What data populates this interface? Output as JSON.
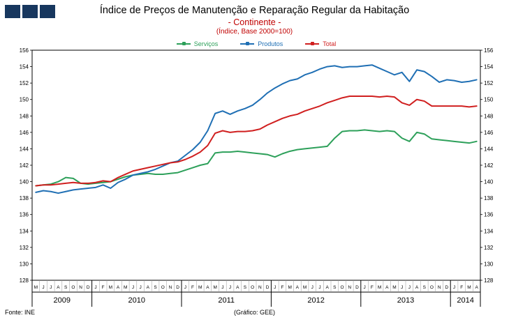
{
  "footer": {
    "source": "Fonte: INE",
    "credit": "(Gráfico: GEE)"
  },
  "chart_data": {
    "type": "line",
    "title": "Índice de Preços de Manutenção e Reparação Regular da Habitação",
    "subtitle": "- Continente -",
    "note": "(Índice, Base 2000=100)",
    "ylim": [
      128,
      156
    ],
    "ytick_step": 2,
    "grid": false,
    "legend_position": "top",
    "x_months": [
      "M",
      "J",
      "J",
      "A",
      "S",
      "O",
      "N",
      "D",
      "J",
      "F",
      "M",
      "A",
      "M",
      "J",
      "J",
      "A",
      "S",
      "O",
      "N",
      "D",
      "J",
      "F",
      "M",
      "A",
      "M",
      "J",
      "J",
      "A",
      "S",
      "O",
      "N",
      "D",
      "J",
      "F",
      "M",
      "A",
      "M",
      "J",
      "J",
      "A",
      "S",
      "O",
      "N",
      "D",
      "J",
      "F",
      "M",
      "A",
      "M",
      "J",
      "J",
      "A",
      "S",
      "O",
      "N",
      "D",
      "J",
      "F",
      "M",
      "A"
    ],
    "year_groups": [
      {
        "label": "2009",
        "count": 8
      },
      {
        "label": "2010",
        "count": 12
      },
      {
        "label": "2011",
        "count": 12
      },
      {
        "label": "2012",
        "count": 12
      },
      {
        "label": "2013",
        "count": 12
      },
      {
        "label": "2014",
        "count": 4
      }
    ],
    "series": [
      {
        "name": "Serviços",
        "color": "#2DA05A",
        "values": [
          139.5,
          139.6,
          139.7,
          140.0,
          140.5,
          140.4,
          139.8,
          139.7,
          139.8,
          139.9,
          140.0,
          140.3,
          140.6,
          140.8,
          140.9,
          141.0,
          140.9,
          140.9,
          141.0,
          141.1,
          141.4,
          141.7,
          142.0,
          142.2,
          143.5,
          143.6,
          143.6,
          143.7,
          143.6,
          143.5,
          143.4,
          143.3,
          143.0,
          143.4,
          143.7,
          143.9,
          144.0,
          144.1,
          144.2,
          144.3,
          145.3,
          146.1,
          146.2,
          146.2,
          146.3,
          146.2,
          146.1,
          146.2,
          146.1,
          145.3,
          144.9,
          146.0,
          145.8,
          145.2,
          145.1,
          145.0,
          144.9,
          144.8,
          144.7,
          144.9
        ]
      },
      {
        "name": "Produtos",
        "color": "#1F6FB4",
        "values": [
          138.7,
          138.9,
          138.8,
          138.6,
          138.8,
          139.0,
          139.1,
          139.2,
          139.3,
          139.6,
          139.2,
          139.9,
          140.3,
          140.8,
          141.0,
          141.2,
          141.5,
          141.9,
          142.3,
          142.5,
          143.2,
          143.9,
          144.8,
          146.2,
          148.3,
          148.6,
          148.2,
          148.6,
          148.9,
          149.3,
          150.0,
          150.8,
          151.4,
          151.9,
          152.3,
          152.5,
          153.0,
          153.3,
          153.7,
          154.0,
          154.1,
          153.9,
          154.0,
          154.0,
          154.1,
          154.2,
          153.8,
          153.4,
          153.0,
          153.3,
          152.2,
          153.6,
          153.4,
          152.8,
          152.1,
          152.4,
          152.3,
          152.1,
          152.2,
          152.4
        ]
      },
      {
        "name": "Total",
        "color": "#D01F1F",
        "values": [
          139.5,
          139.6,
          139.6,
          139.7,
          139.8,
          139.9,
          139.8,
          139.8,
          139.9,
          140.1,
          140.0,
          140.5,
          140.9,
          141.3,
          141.5,
          141.7,
          141.9,
          142.1,
          142.3,
          142.4,
          142.7,
          143.1,
          143.6,
          144.4,
          145.9,
          146.2,
          146.0,
          146.1,
          146.1,
          146.2,
          146.4,
          146.9,
          147.3,
          147.7,
          148.0,
          148.2,
          148.6,
          148.9,
          149.2,
          149.6,
          149.9,
          150.2,
          150.4,
          150.4,
          150.4,
          150.4,
          150.3,
          150.4,
          150.3,
          149.6,
          149.3,
          150.0,
          149.8,
          149.2,
          149.2,
          149.2,
          149.2,
          149.2,
          149.1,
          149.2
        ]
      }
    ]
  }
}
